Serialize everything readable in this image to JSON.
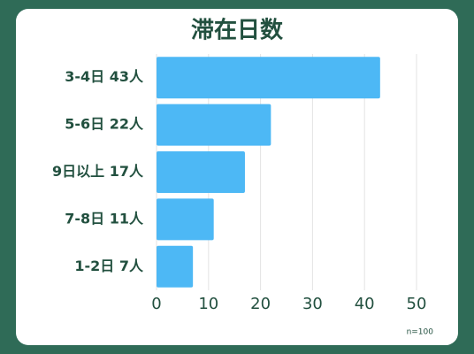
{
  "chart_data": {
    "type": "bar",
    "orientation": "horizontal",
    "title": "滞在日数",
    "categories": [
      "3-4日 43人",
      "5-6日 22人",
      "9日以上 17人",
      "7-8日 11人",
      "1-2日 7人"
    ],
    "values": [
      43,
      22,
      17,
      11,
      7
    ],
    "color": "#4db8f5",
    "xlim": [
      0,
      50
    ],
    "xticks": [
      0,
      10,
      20,
      30,
      40,
      50
    ],
    "grid": true,
    "annotation": "n=100"
  }
}
